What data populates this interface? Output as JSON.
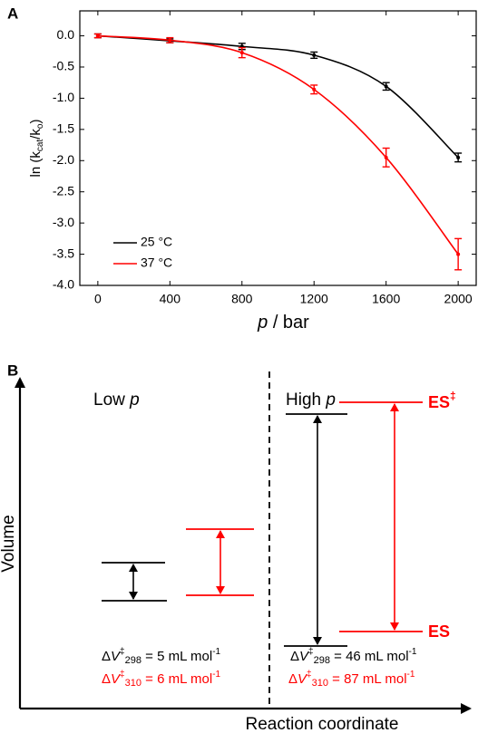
{
  "panel_labels": [
    "A",
    "B"
  ],
  "chart_data": {
    "type": "line",
    "ylabel": [
      "ln (k",
      "cat",
      "/k",
      "o",
      ")"
    ],
    "xlabel": [
      "p",
      " / bar"
    ],
    "x": [
      0,
      400,
      800,
      1200,
      1600,
      2000
    ],
    "series": [
      {
        "name": "25 °C",
        "color": "#000000",
        "values": [
          0,
          -0.08,
          -0.17,
          -0.31,
          -0.81,
          -1.95
        ],
        "errors": [
          0.03,
          0.03,
          0.05,
          0.05,
          0.06,
          0.07
        ]
      },
      {
        "name": "37 °C",
        "color": "#ff0000",
        "values": [
          0,
          -0.07,
          -0.27,
          -0.86,
          -1.95,
          -3.5
        ],
        "errors": [
          0.03,
          0.04,
          0.08,
          0.07,
          0.15,
          0.25
        ]
      }
    ],
    "xlim": [
      -100,
      2100
    ],
    "xticks": [
      0,
      400,
      800,
      1200,
      1600,
      2000
    ],
    "ylim": [
      -4,
      0.4
    ],
    "yticks": [
      {
        "value": 0,
        "label": "0.0"
      },
      -0.5,
      {
        "value": -1,
        "label": "-1.0"
      },
      -1.5,
      {
        "value": -2,
        "label": "-2.0"
      },
      -2.5,
      {
        "value": -3,
        "label": "-3.0"
      },
      -3.5,
      {
        "value": -4,
        "label": "-4.0"
      }
    ],
    "legend": "lower left",
    "grid": false
  },
  "diagram": {
    "y_axis_label": "Volume",
    "x_axis_label": "Reaction coordinate",
    "low_title": [
      "Low ",
      "p"
    ],
    "high_title": [
      "High ",
      "p"
    ],
    "transition_state": [
      "ES",
      "‡"
    ],
    "ground_state": "ES",
    "equations": [
      {
        "color": "#000000",
        "delta": "Δ",
        "symbol": "V",
        "dagger": "‡",
        "temperature": "298",
        "rest": " = 5 mL mol",
        "exponent": "-1"
      },
      {
        "color": "#ff0000",
        "delta": "Δ",
        "symbol": "V",
        "dagger": "‡",
        "temperature": "310",
        "rest": " = 6 mL mol",
        "exponent": "-1"
      },
      {
        "color": "#000000",
        "delta": "Δ",
        "symbol": "V",
        "dagger": "‡",
        "temperature": "298",
        "rest": " = 46 mL mol",
        "exponent": "-1"
      },
      {
        "color": "#ff0000",
        "delta": "Δ",
        "symbol": "V",
        "dagger": "‡",
        "temperature": "310",
        "rest": " = 87 mL mol",
        "exponent": "-1"
      }
    ]
  }
}
